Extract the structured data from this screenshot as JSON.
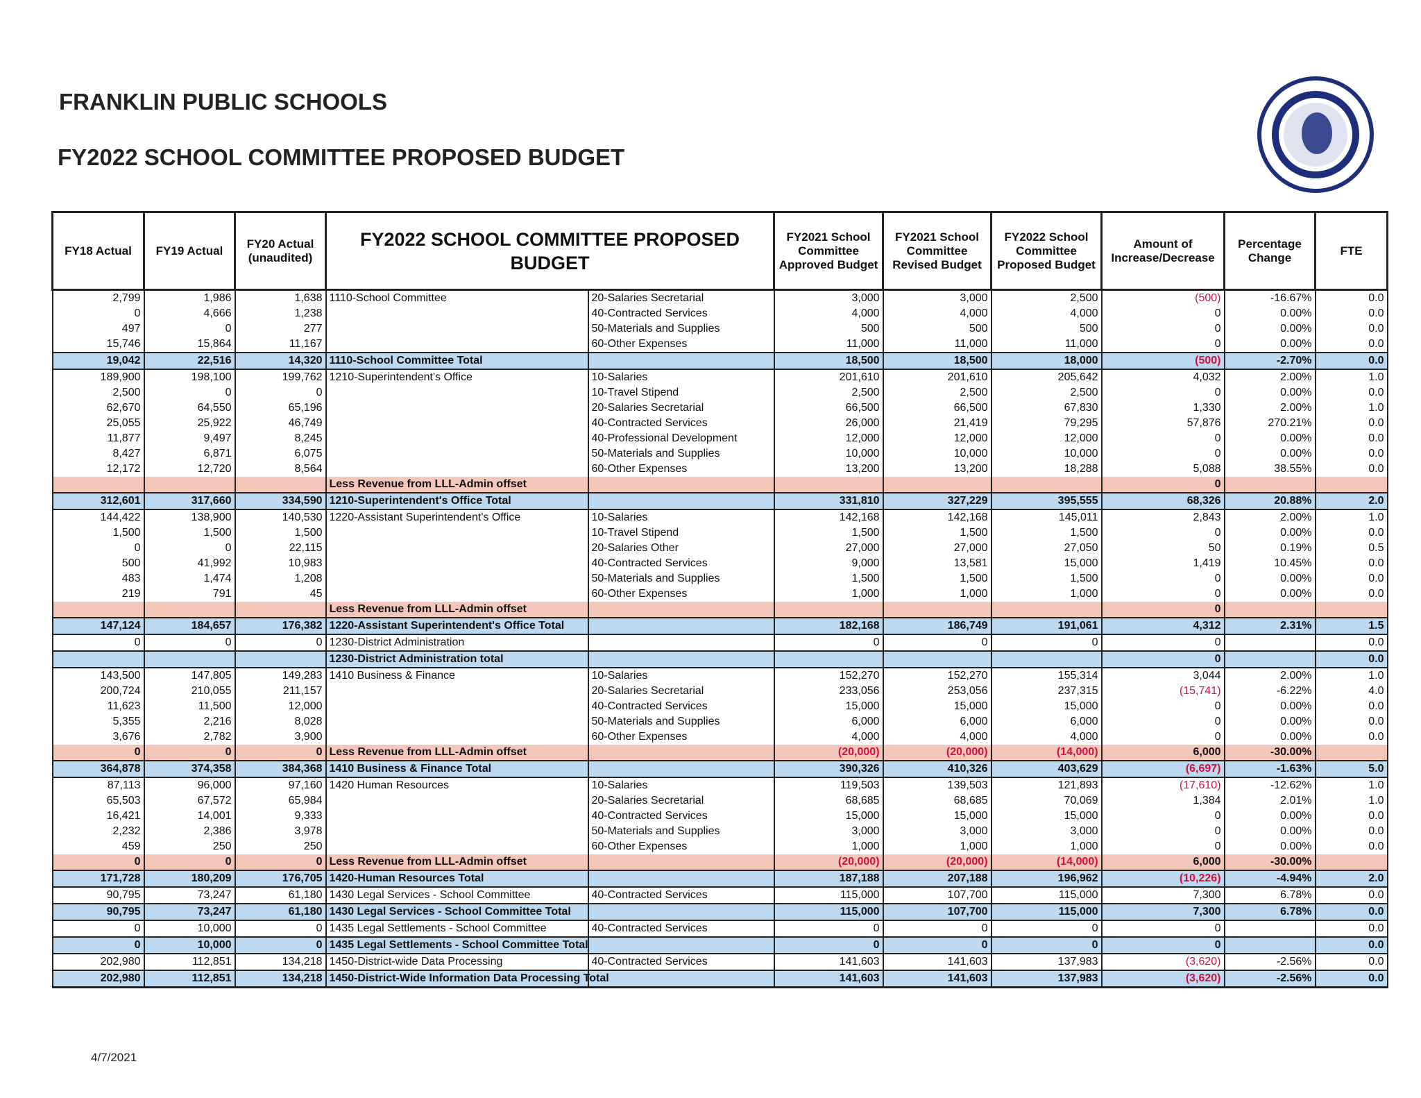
{
  "header": {
    "title": "FRANKLIN PUBLIC SCHOOLS",
    "subtitle": "FY2022 SCHOOL COMMITTEE PROPOSED BUDGET"
  },
  "table": {
    "columns": [
      "FY18 Actual",
      "FY19 Actual",
      "FY20 Actual (unaudited)",
      "FY2022 SCHOOL COMMITTEE PROPOSED BUDGET",
      "FY2021 School Committee Approved Budget",
      "FY2021 School Committee Revised Budget",
      "FY2022 School Committee Proposed Budget",
      "Amount of Increase/Decrease",
      "Percentage Change",
      "FTE"
    ],
    "rows": [
      [
        "2,799",
        "1,986",
        "1,638",
        "1110-School Committee",
        "20-Salaries Secretarial",
        "3,000",
        "3,000",
        "2,500",
        "(500)",
        "-16.67%",
        "0.0"
      ],
      [
        "0",
        "4,666",
        "1,238",
        null,
        "40-Contracted Services",
        "4,000",
        "4,000",
        "4,000",
        "0",
        "0.00%",
        "0.0"
      ],
      [
        "497",
        "0",
        "277",
        null,
        "50-Materials and Supplies",
        "500",
        "500",
        "500",
        "0",
        "0.00%",
        "0.0"
      ],
      [
        "15,746",
        "15,864",
        "11,167",
        null,
        "60-Other Expenses",
        "11,000",
        "11,000",
        "11,000",
        "0",
        "0.00%",
        "0.0"
      ],
      [
        "19,042",
        "22,516",
        "14,320",
        "1110-School Committee Total",
        null,
        "18,500",
        "18,500",
        "18,000",
        "(500)",
        "-2.70%",
        "0.0"
      ],
      [
        "189,900",
        "198,100",
        "199,762",
        "1210-Superintendent's Office",
        "10-Salaries",
        "201,610",
        "201,610",
        "205,642",
        "4,032",
        "2.00%",
        "1.0"
      ],
      [
        "2,500",
        "0",
        "0",
        null,
        "10-Travel Stipend",
        "2,500",
        "2,500",
        "2,500",
        "0",
        "0.00%",
        "0.0"
      ],
      [
        "62,670",
        "64,550",
        "65,196",
        null,
        "20-Salaries Secretarial",
        "66,500",
        "66,500",
        "67,830",
        "1,330",
        "2.00%",
        "1.0"
      ],
      [
        "25,055",
        "25,922",
        "46,749",
        null,
        "40-Contracted Services",
        "26,000",
        "21,419",
        "79,295",
        "57,876",
        "270.21%",
        "0.0"
      ],
      [
        "11,877",
        "9,497",
        "8,245",
        null,
        "40-Professional Development",
        "12,000",
        "12,000",
        "12,000",
        "0",
        "0.00%",
        "0.0"
      ],
      [
        "8,427",
        "6,871",
        "6,075",
        null,
        "50-Materials and Supplies",
        "10,000",
        "10,000",
        "10,000",
        "0",
        "0.00%",
        "0.0"
      ],
      [
        "12,172",
        "12,720",
        "8,564",
        null,
        "60-Other Expenses",
        "13,200",
        "13,200",
        "18,288",
        "5,088",
        "38.55%",
        "0.0"
      ],
      [
        null,
        null,
        null,
        "Less Revenue from LLL-Admin offset",
        null,
        null,
        null,
        null,
        "0",
        null,
        null
      ],
      [
        "312,601",
        "317,660",
        "334,590",
        "1210-Superintendent's Office Total",
        null,
        "331,810",
        "327,229",
        "395,555",
        "68,326",
        "20.88%",
        "2.0"
      ],
      [
        "144,422",
        "138,900",
        "140,530",
        "1220-Assistant Superintendent's Office",
        "10-Salaries",
        "142,168",
        "142,168",
        "145,011",
        "2,843",
        "2.00%",
        "1.0"
      ],
      [
        "1,500",
        "1,500",
        "1,500",
        null,
        "10-Travel Stipend",
        "1,500",
        "1,500",
        "1,500",
        "0",
        "0.00%",
        "0.0"
      ],
      [
        "0",
        "0",
        "22,115",
        null,
        "20-Salaries Other",
        "27,000",
        "27,000",
        "27,050",
        "50",
        "0.19%",
        "0.5"
      ],
      [
        "500",
        "41,992",
        "10,983",
        null,
        "40-Contracted Services",
        "9,000",
        "13,581",
        "15,000",
        "1,419",
        "10.45%",
        "0.0"
      ],
      [
        "483",
        "1,474",
        "1,208",
        null,
        "50-Materials and Supplies",
        "1,500",
        "1,500",
        "1,500",
        "0",
        "0.00%",
        "0.0"
      ],
      [
        "219",
        "791",
        "45",
        null,
        "60-Other Expenses",
        "1,000",
        "1,000",
        "1,000",
        "0",
        "0.00%",
        "0.0"
      ],
      [
        null,
        null,
        null,
        "Less Revenue from LLL-Admin offset",
        null,
        null,
        null,
        null,
        "0",
        null,
        null
      ],
      [
        "147,124",
        "184,657",
        "176,382",
        "1220-Assistant Superintendent's Office Total",
        null,
        "182,168",
        "186,749",
        "191,061",
        "4,312",
        "2.31%",
        "1.5"
      ],
      [
        "0",
        "0",
        "0",
        "1230-District Administration",
        null,
        "0",
        "0",
        "0",
        "0",
        null,
        "0.0"
      ],
      [
        null,
        null,
        null,
        "1230-District Administration total",
        null,
        null,
        null,
        null,
        "0",
        null,
        "0.0"
      ],
      [
        "143,500",
        "147,805",
        "149,283",
        "1410 Business & Finance",
        "10-Salaries",
        "152,270",
        "152,270",
        "155,314",
        "3,044",
        "2.00%",
        "1.0"
      ],
      [
        "200,724",
        "210,055",
        "211,157",
        null,
        "20-Salaries Secretarial",
        "233,056",
        "253,056",
        "237,315",
        "(15,741)",
        "-6.22%",
        "4.0"
      ],
      [
        "11,623",
        "11,500",
        "12,000",
        null,
        "40-Contracted Services",
        "15,000",
        "15,000",
        "15,000",
        "0",
        "0.00%",
        "0.0"
      ],
      [
        "5,355",
        "2,216",
        "8,028",
        null,
        "50-Materials and Supplies",
        "6,000",
        "6,000",
        "6,000",
        "0",
        "0.00%",
        "0.0"
      ],
      [
        "3,676",
        "2,782",
        "3,900",
        null,
        "60-Other Expenses",
        "4,000",
        "4,000",
        "4,000",
        "0",
        "0.00%",
        "0.0"
      ],
      [
        "0",
        "0",
        "0",
        "Less Revenue from LLL-Admin offset",
        null,
        "(20,000)",
        "(20,000)",
        "(14,000)",
        "6,000",
        "-30.00%",
        null
      ],
      [
        "364,878",
        "374,358",
        "384,368",
        "1410 Business & Finance Total",
        null,
        "390,326",
        "410,326",
        "403,629",
        "(6,697)",
        "-1.63%",
        "5.0"
      ],
      [
        "87,113",
        "96,000",
        "97,160",
        "1420 Human Resources",
        "10-Salaries",
        "119,503",
        "139,503",
        "121,893",
        "(17,610)",
        "-12.62%",
        "1.0"
      ],
      [
        "65,503",
        "67,572",
        "65,984",
        null,
        "20-Salaries Secretarial",
        "68,685",
        "68,685",
        "70,069",
        "1,384",
        "2.01%",
        "1.0"
      ],
      [
        "16,421",
        "14,001",
        "9,333",
        null,
        "40-Contracted Services",
        "15,000",
        "15,000",
        "15,000",
        "0",
        "0.00%",
        "0.0"
      ],
      [
        "2,232",
        "2,386",
        "3,978",
        null,
        "50-Materials and Supplies",
        "3,000",
        "3,000",
        "3,000",
        "0",
        "0.00%",
        "0.0"
      ],
      [
        "459",
        "250",
        "250",
        null,
        "60-Other Expenses",
        "1,000",
        "1,000",
        "1,000",
        "0",
        "0.00%",
        "0.0"
      ],
      [
        "0",
        "0",
        "0",
        "Less Revenue from LLL-Admin offset",
        null,
        "(20,000)",
        "(20,000)",
        "(14,000)",
        "6,000",
        "-30.00%",
        null
      ],
      [
        "171,728",
        "180,209",
        "176,705",
        "1420-Human Resources Total",
        null,
        "187,188",
        "207,188",
        "196,962",
        "(10,226)",
        "-4.94%",
        "2.0"
      ],
      [
        "90,795",
        "73,247",
        "61,180",
        "1430 Legal Services - School Committee",
        "40-Contracted Services",
        "115,000",
        "107,700",
        "115,000",
        "7,300",
        "6.78%",
        "0.0"
      ],
      [
        "90,795",
        "73,247",
        "61,180",
        "1430 Legal Services - School Committee  Total",
        null,
        "115,000",
        "107,700",
        "115,000",
        "7,300",
        "6.78%",
        "0.0"
      ],
      [
        "0",
        "10,000",
        "0",
        "1435 Legal Settlements - School Committee",
        "40-Contracted Services",
        "0",
        "0",
        "0",
        "0",
        null,
        "0.0"
      ],
      [
        "0",
        "10,000",
        "0",
        "1435 Legal Settlements - School Committee  Total",
        null,
        "0",
        "0",
        "0",
        "0",
        null,
        "0.0"
      ],
      [
        "202,980",
        "112,851",
        "134,218",
        "1450-District-wide Data Processing",
        "40-Contracted Services",
        "141,603",
        "141,603",
        "137,983",
        "(3,620)",
        "-2.56%",
        "0.0"
      ],
      [
        "202,980",
        "112,851",
        "134,218",
        "1450-District-Wide Information Data Processing Total",
        null,
        "141,603",
        "141,603",
        "137,983",
        "(3,620)",
        "-2.56%",
        "0.0"
      ]
    ]
  },
  "footer": {
    "date": "4/7/2021"
  }
}
